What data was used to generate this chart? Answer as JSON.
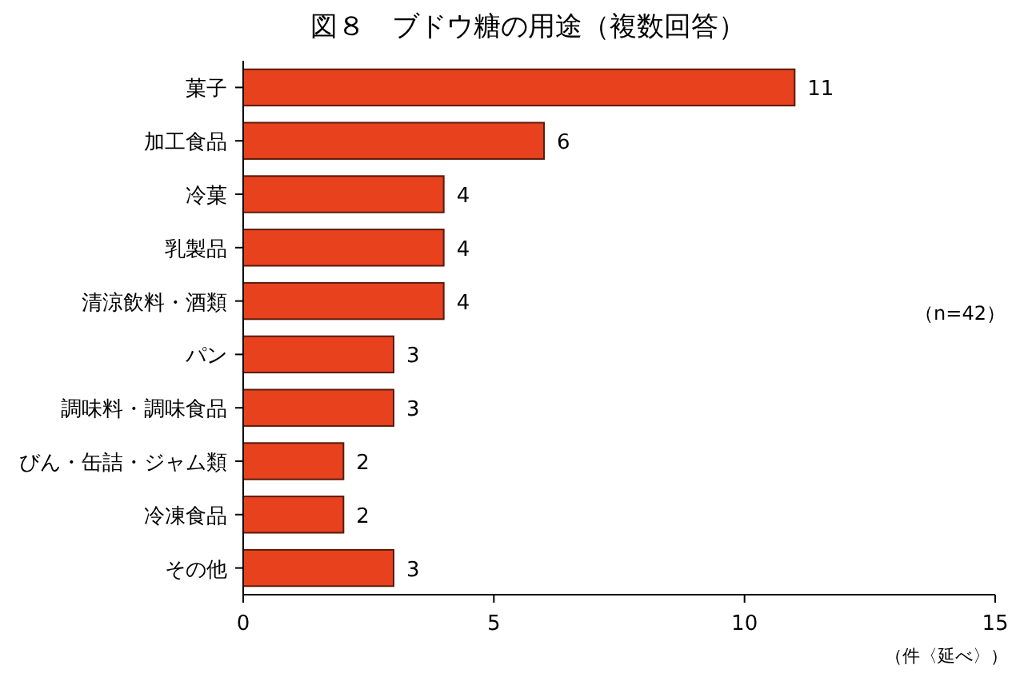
{
  "chart_data": {
    "type": "bar",
    "orientation": "horizontal",
    "title": "図８　ブドウ糖の用途（複数回答）",
    "xlabel": "（件〈延べ〉）",
    "categories": [
      "菓子",
      "加工食品",
      "冷菓",
      "乳製品",
      "清涼飲料・酒類",
      "パン",
      "調味料・調味食品",
      "びん・缶詰・ジャム類",
      "冷凍食品",
      "その他"
    ],
    "values": [
      11,
      6,
      4,
      4,
      4,
      3,
      3,
      2,
      2,
      3
    ],
    "color": "#e8411e",
    "xlim": [
      0,
      15
    ],
    "xticks": [
      0,
      5,
      10,
      15
    ],
    "data_labels": true,
    "annotations": [
      "（n=42）"
    ]
  }
}
